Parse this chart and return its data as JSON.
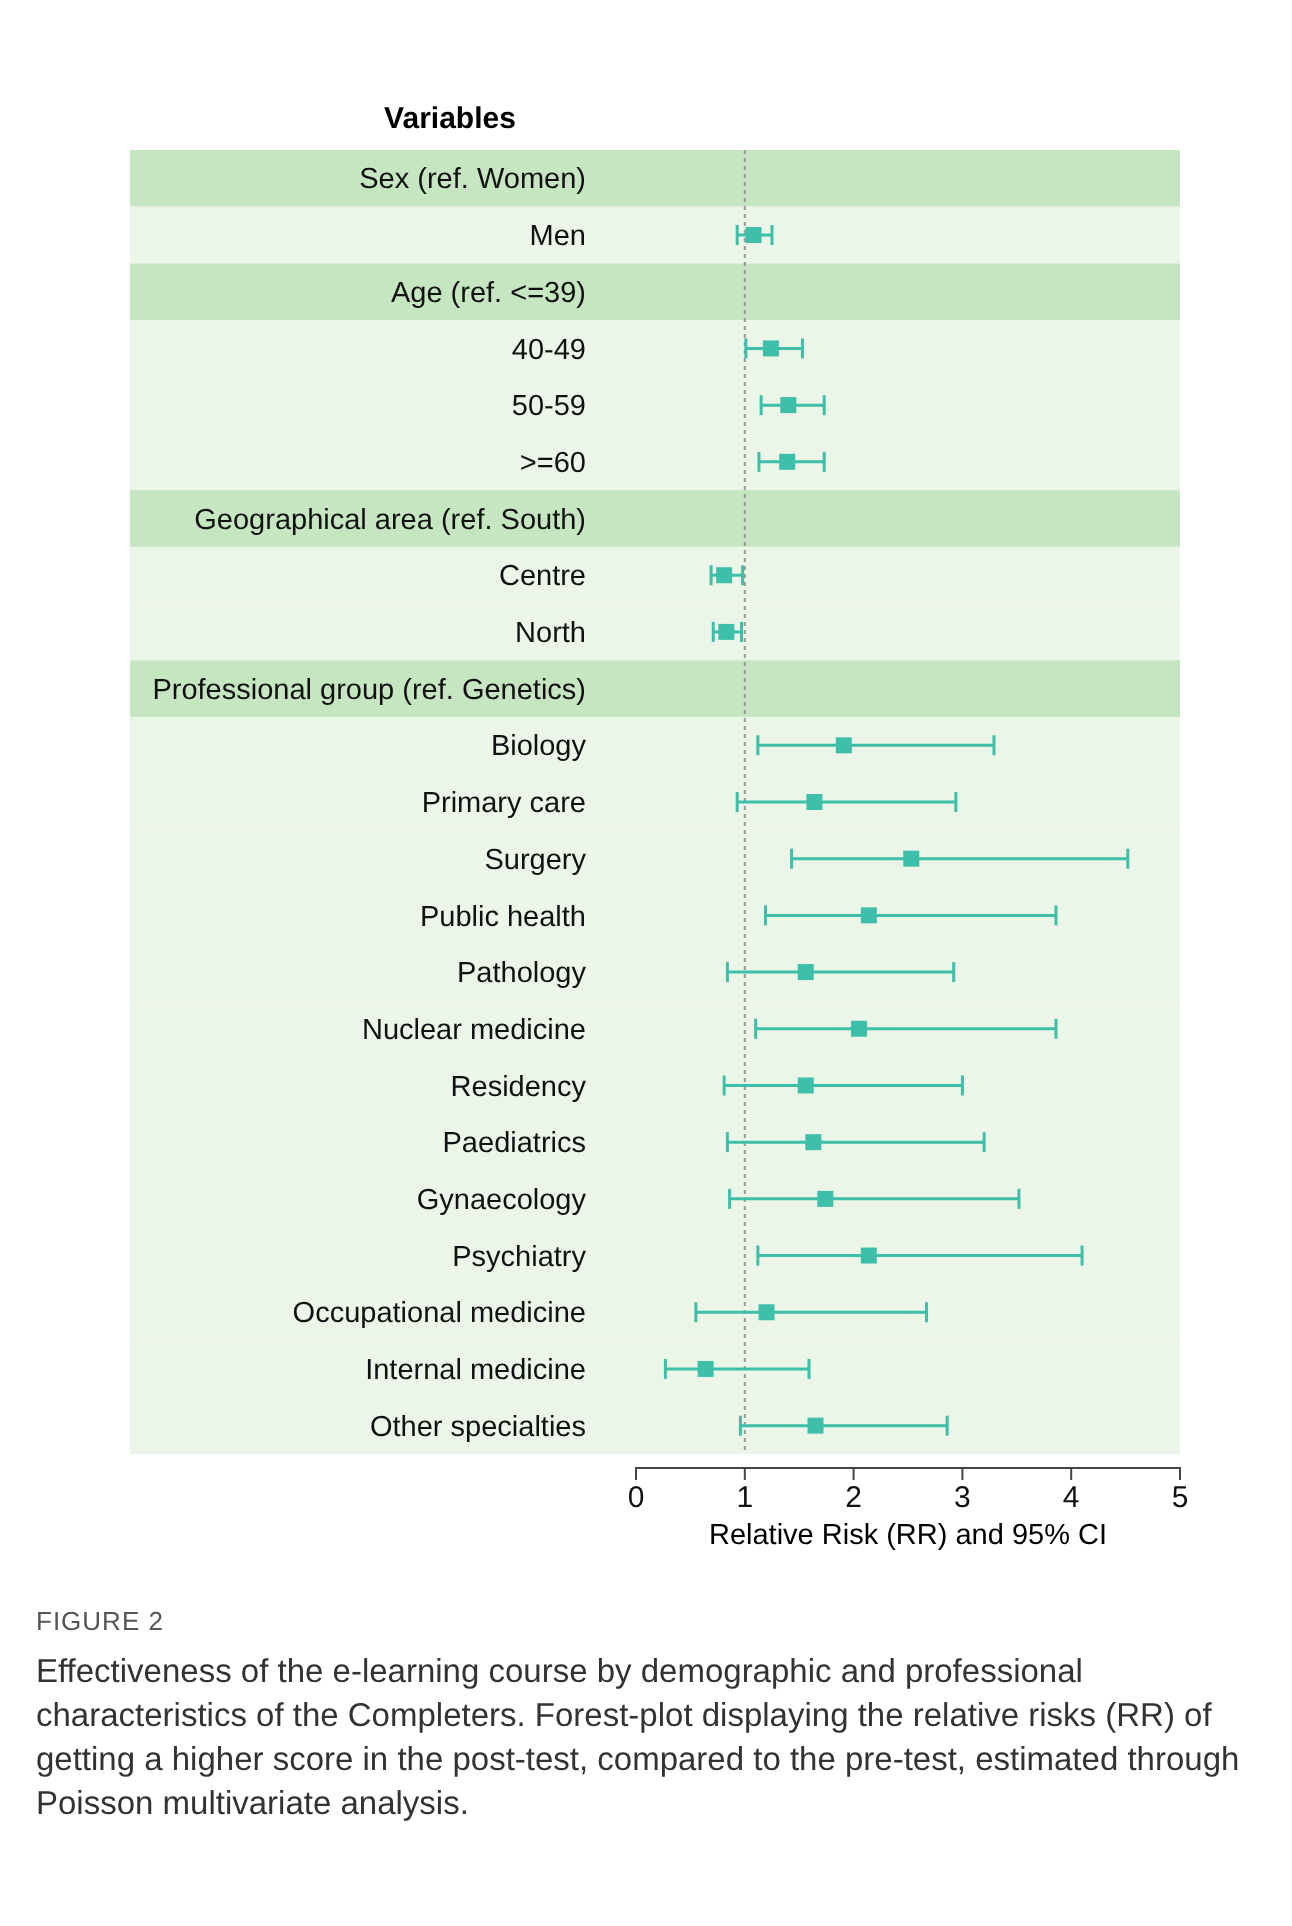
{
  "chart_data": {
    "type": "scatter",
    "orientation": "horizontal",
    "marker": "square",
    "ylabel": "Variables",
    "xlabel": "Relative Risk (RR) and 95% CI",
    "categories": [
      "Sex (ref. Women)",
      "Men",
      "Age (ref. <=39)",
      "40-49",
      "50-59",
      ">=60",
      "Geographical area (ref. South)",
      "Centre",
      "North",
      "Professional group (ref. Genetics)",
      "Biology",
      "Primary care",
      "Surgery",
      "Public health",
      "Pathology",
      "Nuclear medicine",
      "Residency",
      "Paediatrics",
      "Gynaecology",
      "Psychiatry",
      "Occupational medicine",
      "Internal medicine",
      "Other specialties"
    ],
    "series": [
      {
        "color": "#3dbfa9",
        "values": [
          null,
          1.08,
          null,
          1.24,
          1.4,
          1.39,
          null,
          0.81,
          0.83,
          null,
          1.91,
          1.64,
          2.53,
          2.14,
          1.56,
          2.05,
          1.56,
          1.63,
          1.74,
          2.14,
          1.2,
          0.64,
          1.65
        ],
        "errors": [
          null,
          [
            0.93,
            1.25
          ],
          null,
          [
            1.01,
            1.53
          ],
          [
            1.15,
            1.73
          ],
          [
            1.13,
            1.73
          ],
          null,
          [
            0.69,
            0.98
          ],
          [
            0.71,
            0.97
          ],
          null,
          [
            1.12,
            3.29
          ],
          [
            0.93,
            2.94
          ],
          [
            1.43,
            4.52
          ],
          [
            1.19,
            3.86
          ],
          [
            0.84,
            2.92
          ],
          [
            1.1,
            3.86
          ],
          [
            0.81,
            3.0
          ],
          [
            0.84,
            3.2
          ],
          [
            0.86,
            3.52
          ],
          [
            1.12,
            4.1
          ],
          [
            0.55,
            2.67
          ],
          [
            0.27,
            1.59
          ],
          [
            0.96,
            2.86
          ]
        ]
      }
    ],
    "xlim": [
      0,
      5
    ],
    "xticks": [
      0,
      1,
      2,
      3,
      4,
      5
    ],
    "ref_lines": [
      {
        "axis": "x",
        "value": 1,
        "line_style": "dotted",
        "color": "#999999"
      }
    ],
    "grid": false,
    "annotations": [
      "FIGURE 2",
      "Effectiveness of the e-learning course by demographic and professional characteristics of the Completers. Forest-plot displaying the relative risks (RR) of getting a higher score in the post-test, compared to the pre-test, estimated through Poisson multivariate analysis."
    ]
  }
}
